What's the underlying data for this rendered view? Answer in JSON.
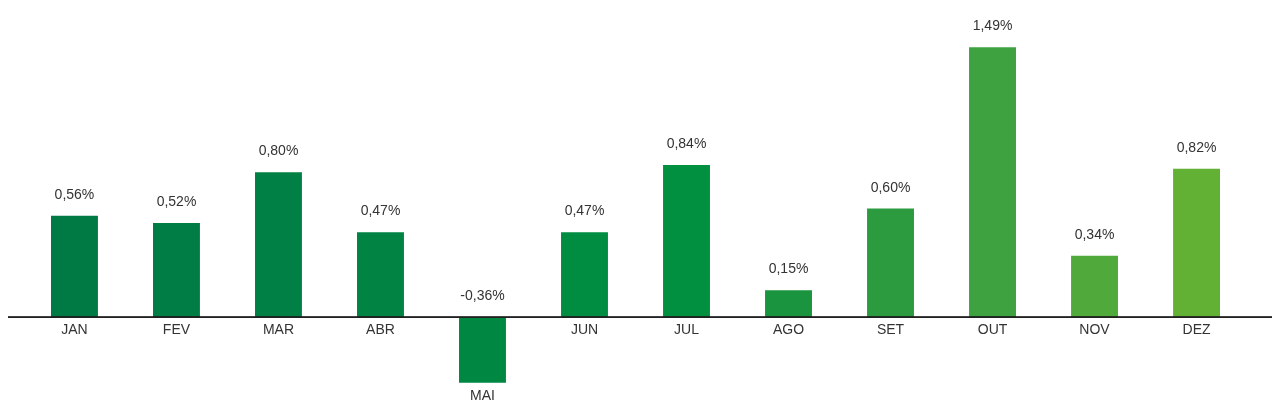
{
  "chart_data": {
    "type": "bar",
    "categories": [
      "JAN",
      "FEV",
      "MAR",
      "ABR",
      "MAI",
      "JUN",
      "JUL",
      "AGO",
      "SET",
      "OUT",
      "NOV",
      "DEZ"
    ],
    "values": [
      0.56,
      0.52,
      0.8,
      0.47,
      -0.36,
      0.47,
      0.84,
      0.15,
      0.6,
      1.49,
      0.34,
      0.82
    ],
    "value_labels": [
      "0,56%",
      "0,52%",
      "0,80%",
      "0,47%",
      "-0,36%",
      "0,47%",
      "0,84%",
      "0,15%",
      "0,60%",
      "1,49%",
      "0,34%",
      "0,82%"
    ],
    "colors": [
      "#007a45",
      "#007d45",
      "#008044",
      "#008343",
      "#008842",
      "#008d41",
      "#009040",
      "#1a943f",
      "#2c9b3f",
      "#3da23f",
      "#50aa3b",
      "#62b135"
    ]
  }
}
